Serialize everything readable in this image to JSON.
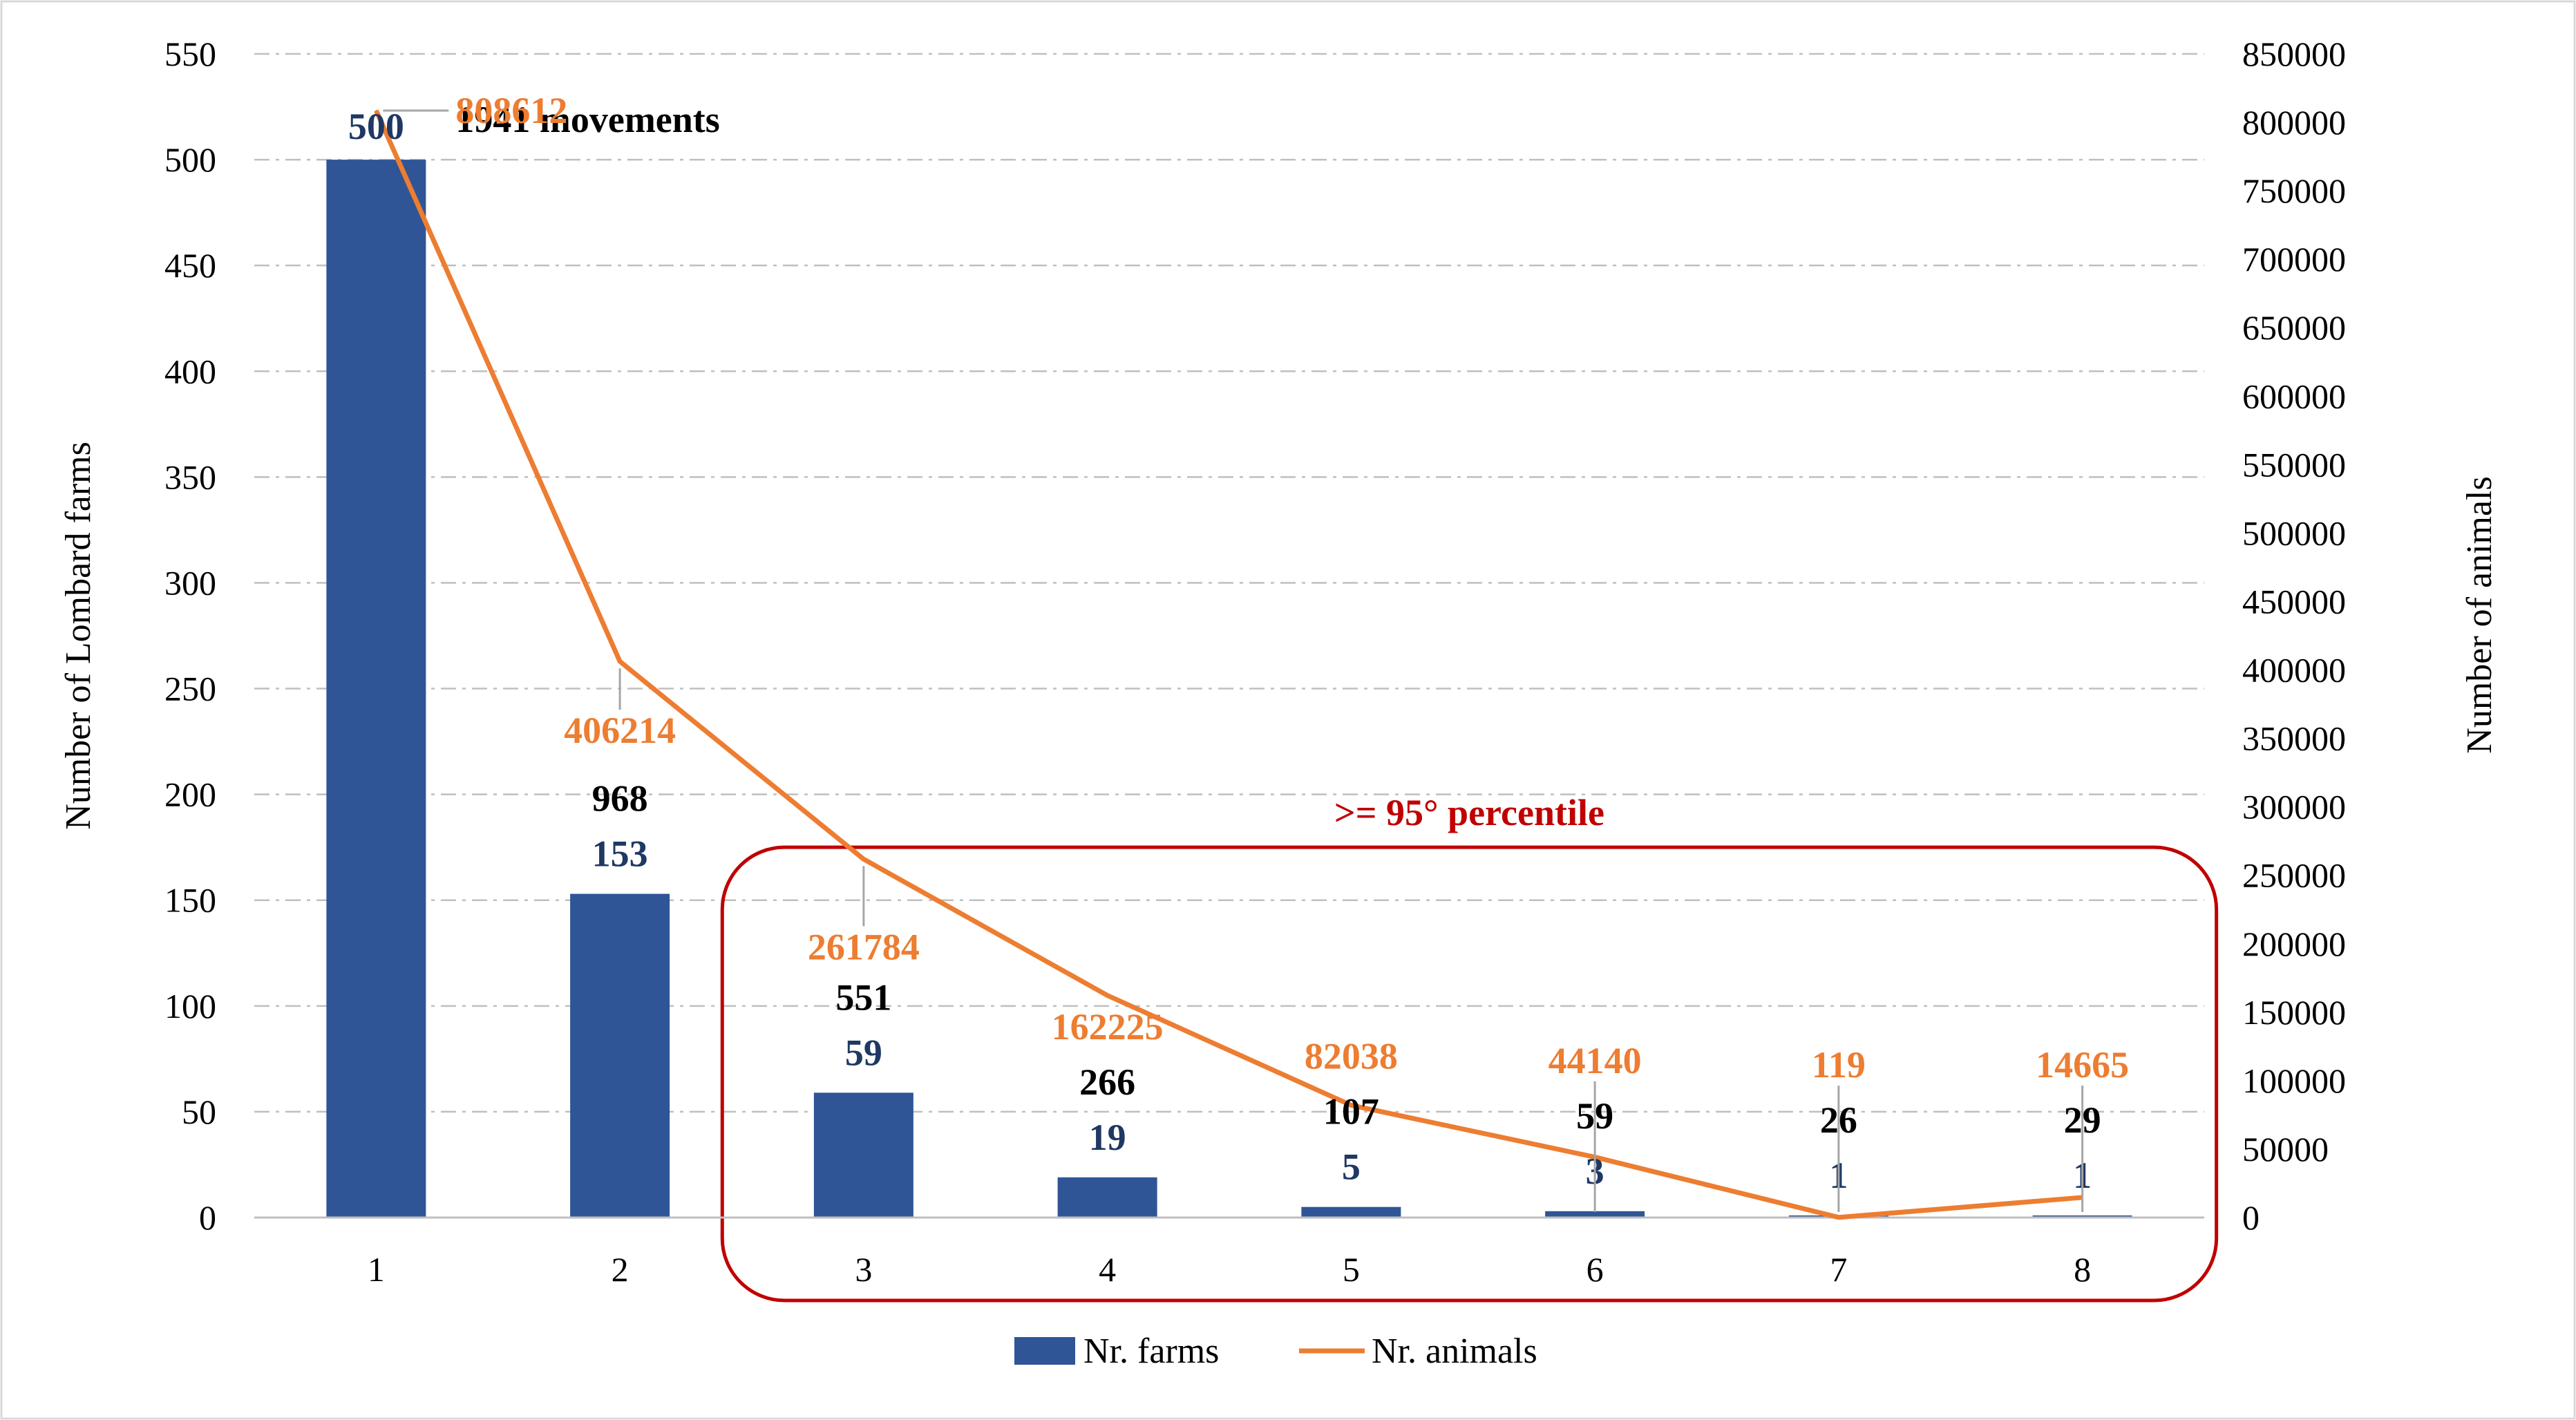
{
  "chart_data": {
    "type": "bar",
    "categories": [
      "1",
      "2",
      "3",
      "4",
      "5",
      "6",
      "7",
      "8"
    ],
    "series": [
      {
        "name": "Nr. farms",
        "type": "bar",
        "axis": "left",
        "values": [
          500,
          153,
          59,
          19,
          5,
          3,
          1,
          1
        ],
        "color": "#2f5597",
        "label_color": "#1f3864"
      },
      {
        "name": "Nr. animals",
        "type": "line",
        "axis": "right",
        "values": [
          808612,
          406214,
          261784,
          162225,
          82038,
          44140,
          119,
          14665
        ],
        "color": "#ed7d31"
      }
    ],
    "movements": {
      "values": [
        1941,
        968,
        551,
        266,
        107,
        59,
        26,
        29
      ],
      "first_label": "1941 movements",
      "color": "#000000"
    },
    "ylabel": "Number of Lombard farms",
    "y2label": "Number of animals",
    "ylim": [
      0,
      550
    ],
    "y2lim": [
      0,
      850000
    ],
    "yticks": [
      0,
      50,
      100,
      150,
      200,
      250,
      300,
      350,
      400,
      450,
      500,
      550
    ],
    "y2ticks": [
      0,
      50000,
      100000,
      150000,
      200000,
      250000,
      300000,
      350000,
      400000,
      450000,
      500000,
      550000,
      600000,
      650000,
      700000,
      750000,
      800000,
      850000
    ],
    "grid": true,
    "legend_position": "bottom",
    "annotation": {
      "text": ">= 95° percentile",
      "categories": [
        "3",
        "8"
      ],
      "color": "#c00000"
    }
  }
}
